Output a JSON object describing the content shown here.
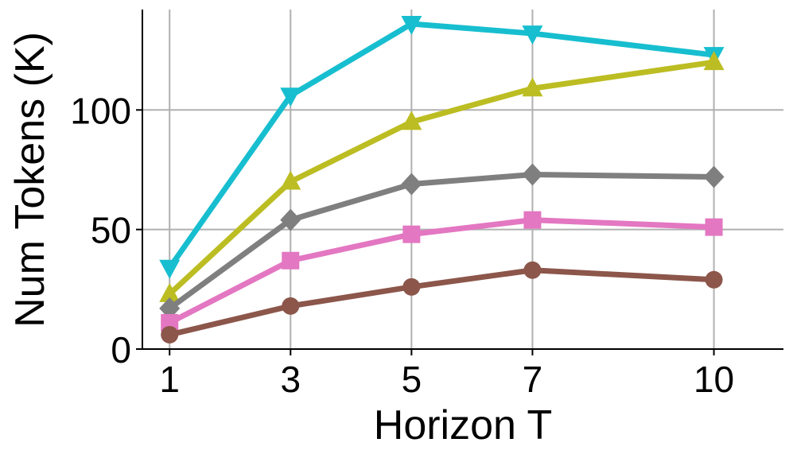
{
  "chart_data": {
    "type": "line",
    "xlabel": "Horizon T",
    "ylabel": "Num Tokens (K)",
    "x": [
      1,
      3,
      5,
      7,
      10
    ],
    "xticks": [
      "1",
      "3",
      "5",
      "7",
      "10"
    ],
    "yticks": [
      "0",
      "50",
      "100"
    ],
    "xlim": [
      0.55,
      11.15
    ],
    "ylim": [
      0,
      142
    ],
    "grid": true,
    "series": [
      {
        "color": "#17becf",
        "marker": "triangle-down",
        "values": [
          34,
          106,
          136,
          132,
          123
        ]
      },
      {
        "color": "#bcbd22",
        "marker": "triangle-up",
        "values": [
          23,
          70,
          95,
          109,
          120
        ]
      },
      {
        "color": "#7f7f7f",
        "marker": "diamond",
        "values": [
          17,
          54,
          69,
          73,
          72
        ]
      },
      {
        "color": "#e377c2",
        "marker": "square",
        "values": [
          11,
          37,
          48,
          54,
          51
        ]
      },
      {
        "color": "#8c564b",
        "marker": "circle",
        "values": [
          6,
          18,
          26,
          33,
          29
        ]
      }
    ]
  }
}
